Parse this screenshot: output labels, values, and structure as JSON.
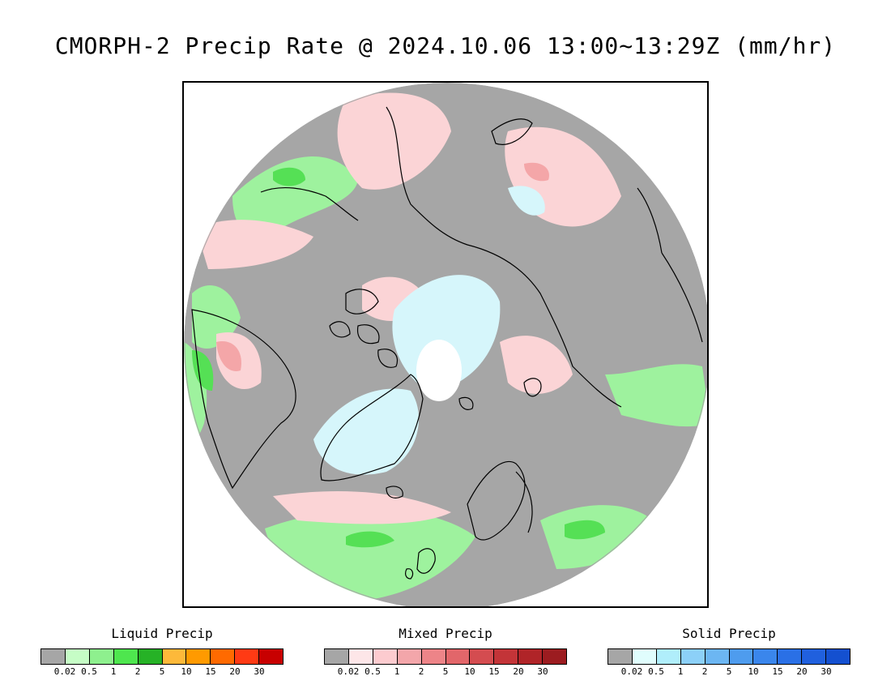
{
  "title": "CMORPH-2 Precip Rate @ 2024.10.06 13:00~13:29Z (mm/hr)",
  "colors": {
    "no_precip": "#a6a6a6",
    "liquid_light": "#9ef29e",
    "liquid_mid": "#55e055",
    "liquid_heavy": "#2ab02a",
    "mixed_light": "#fbd4d6",
    "mixed_mid": "#f4a6a8",
    "solid_light": "#d6f6fb",
    "polar_hole": "#ffffff",
    "coastline": "#000000"
  },
  "legends": [
    {
      "title": "Liquid Precip",
      "colors": [
        "#a6a6a6",
        "#c6fdc6",
        "#8ef08e",
        "#4ee64e",
        "#26b226",
        "#fdb93a",
        "#ff9a00",
        "#ff6a00",
        "#ff3a14",
        "#c80000"
      ],
      "ticks": [
        "0.02",
        "0.5",
        "1",
        "2",
        "5",
        "10",
        "15",
        "20",
        "30"
      ]
    },
    {
      "title": "Mixed Precip",
      "colors": [
        "#a6a6a6",
        "#fde6e8",
        "#fccbcf",
        "#f3a6aa",
        "#ed8488",
        "#e2666a",
        "#d44c50",
        "#c33438",
        "#b02428",
        "#9c1c20"
      ],
      "ticks": [
        "0.02",
        "0.5",
        "1",
        "2",
        "5",
        "10",
        "15",
        "20",
        "30"
      ]
    },
    {
      "title": "Solid Precip",
      "colors": [
        "#a6a6a6",
        "#e0fdfd",
        "#b0eefb",
        "#8cd0f8",
        "#6cb6f2",
        "#4e9cee",
        "#3a86ec",
        "#2a70e6",
        "#2060de",
        "#1450d0"
      ],
      "ticks": [
        "0.02",
        "0.5",
        "1",
        "2",
        "5",
        "10",
        "15",
        "20",
        "30"
      ]
    }
  ]
}
